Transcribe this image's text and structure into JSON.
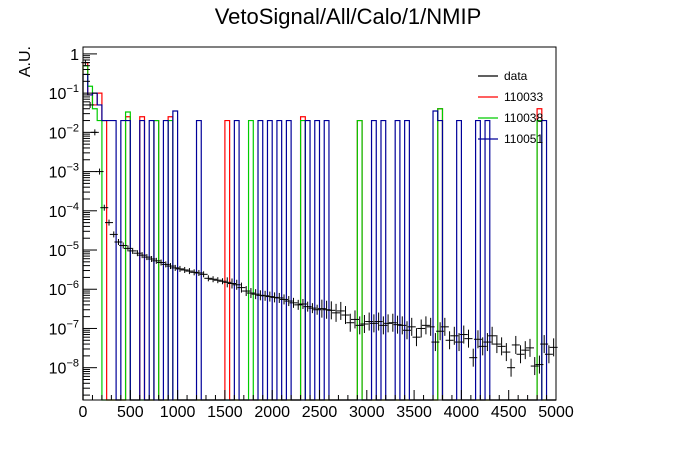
{
  "chart_data": {
    "type": "histogram",
    "title": "VetoSignal/All/Calo/1/NMIP",
    "xlabel": "",
    "ylabel": "A.U.",
    "xlim": [
      0,
      5000
    ],
    "ylim": [
      1.5e-09,
      1.5
    ],
    "yscale": "log",
    "bin_width": 50,
    "x_ticks": [
      0,
      500,
      1000,
      1500,
      2000,
      2500,
      3000,
      3500,
      4000,
      4500,
      5000
    ],
    "x_tick_labels": [
      "0",
      "500",
      "1000",
      "1500",
      "2000",
      "2500",
      "3000",
      "3500",
      "4000",
      "4500",
      "5000"
    ],
    "y_tick_labels": [
      {
        "value": 1,
        "base": "1",
        "exp": ""
      },
      {
        "value": 0.1,
        "base": "10",
        "exp": "−1"
      },
      {
        "value": 0.01,
        "base": "10",
        "exp": "−2"
      },
      {
        "value": 0.001,
        "base": "10",
        "exp": "−3"
      },
      {
        "value": 0.0001,
        "base": "10",
        "exp": "−4"
      },
      {
        "value": 1e-05,
        "base": "10",
        "exp": "−5"
      },
      {
        "value": 1e-06,
        "base": "10",
        "exp": "−6"
      },
      {
        "value": 1e-07,
        "base": "10",
        "exp": "−7"
      },
      {
        "value": 1e-08,
        "base": "10",
        "exp": "−8"
      }
    ],
    "legend_position": "top-right",
    "series": [
      {
        "name": "data",
        "color": "#000000",
        "style": "points",
        "points": [
          [
            25,
            0.6
          ],
          [
            75,
            0.05
          ],
          [
            125,
            0.01
          ],
          [
            175,
            0.001
          ],
          [
            225,
            0.00012
          ],
          [
            275,
            5e-05
          ],
          [
            325,
            2.5e-05
          ],
          [
            375,
            1.6e-05
          ],
          [
            425,
            1.3e-05
          ],
          [
            475,
            1.1e-05
          ],
          [
            525,
            9.5e-06
          ],
          [
            575,
            8.3e-06
          ],
          [
            625,
            7.4e-06
          ],
          [
            675,
            6.6e-06
          ],
          [
            725,
            5.9e-06
          ],
          [
            775,
            5.3e-06
          ],
          [
            825,
            4.8e-06
          ],
          [
            875,
            4.3e-06
          ],
          [
            925,
            3.9e-06
          ],
          [
            975,
            3.5e-06
          ],
          [
            1025,
            3.3e-06
          ],
          [
            1075,
            3.1e-06
          ],
          [
            1125,
            2.9e-06
          ],
          [
            1175,
            2.7e-06
          ],
          [
            1225,
            2.6e-06
          ],
          [
            1275,
            2.4e-06
          ],
          [
            1325,
            1.9e-06
          ],
          [
            1375,
            1.8e-06
          ],
          [
            1425,
            1.7e-06
          ],
          [
            1475,
            1.6e-06
          ],
          [
            1525,
            1.5e-06
          ],
          [
            1575,
            1.4e-06
          ],
          [
            1625,
            1.3e-06
          ],
          [
            1675,
            1.1e-06
          ],
          [
            1725,
            9e-07
          ],
          [
            1775,
            8e-07
          ],
          [
            1825,
            7.5e-07
          ],
          [
            1875,
            7e-07
          ],
          [
            1925,
            6.8e-07
          ],
          [
            1975,
            6.5e-07
          ],
          [
            2025,
            6.2e-07
          ],
          [
            2075,
            6e-07
          ],
          [
            2125,
            5.5e-07
          ],
          [
            2175,
            5e-07
          ],
          [
            2225,
            4.5e-07
          ],
          [
            2275,
            4e-07
          ],
          [
            2325,
            4.2e-07
          ],
          [
            2375,
            3.6e-07
          ],
          [
            2425,
            3.3e-07
          ],
          [
            2475,
            3e-07
          ],
          [
            2525,
            3.2e-07
          ],
          [
            2575,
            3e-07
          ],
          [
            2625,
            2.9e-07
          ],
          [
            2675,
            2.5e-07
          ],
          [
            2725,
            2.8e-07
          ],
          [
            2775,
            2.2e-07
          ],
          [
            2825,
            1.4e-07
          ],
          [
            2875,
            1.7e-07
          ],
          [
            2925,
            1.2e-07
          ],
          [
            2975,
            1.3e-07
          ],
          [
            3025,
            1.5e-07
          ],
          [
            3075,
            1.35e-07
          ],
          [
            3125,
            1.5e-07
          ],
          [
            3175,
            1.2e-07
          ],
          [
            3225,
            1.35e-07
          ],
          [
            3275,
            1.4e-07
          ],
          [
            3325,
            1.25e-07
          ],
          [
            3375,
            1.2e-07
          ],
          [
            3425,
            9e-08
          ],
          [
            3475,
            1.1e-07
          ],
          [
            3525,
            6e-08
          ],
          [
            3575,
            1e-07
          ],
          [
            3625,
            1.2e-07
          ],
          [
            3675,
            1.1e-07
          ],
          [
            3725,
            4.5e-08
          ],
          [
            3775,
            8.5e-08
          ],
          [
            3825,
            1.1e-07
          ],
          [
            3875,
            5e-08
          ],
          [
            3925,
            6.5e-08
          ],
          [
            3975,
            4.5e-08
          ],
          [
            4025,
            7e-08
          ],
          [
            4075,
            5.5e-08
          ],
          [
            4125,
            1.8e-08
          ],
          [
            4175,
            5.3e-08
          ],
          [
            4225,
            3.5e-08
          ],
          [
            4275,
            4.5e-08
          ],
          [
            4325,
            6.5e-08
          ],
          [
            4375,
            4e-08
          ],
          [
            4425,
            3.5e-08
          ],
          [
            4475,
            2.5e-08
          ],
          [
            4525,
            1e-08
          ],
          [
            4575,
            3.8e-08
          ],
          [
            4625,
            2.2e-08
          ],
          [
            4675,
            2.8e-08
          ],
          [
            4725,
            3.2e-08
          ],
          [
            4775,
            1.1e-08
          ],
          [
            4825,
            1.2e-08
          ],
          [
            4875,
            4e-08
          ],
          [
            4925,
            2.2e-08
          ],
          [
            4975,
            3.3e-08
          ]
        ]
      },
      {
        "name": "110033",
        "color": "#ff0000",
        "style": "step",
        "bins": [
          [
            0,
            0.6
          ],
          [
            50,
            0.09
          ],
          [
            100,
            0.05
          ],
          [
            150,
            0.1
          ],
          [
            200,
            0.02
          ],
          [
            450,
            0.025
          ],
          [
            600,
            0.025
          ],
          [
            750,
            0.02
          ],
          [
            900,
            0.025
          ],
          [
            1500,
            0.02
          ],
          [
            2300,
            0.025
          ],
          [
            2900,
            0.02
          ],
          [
            3750,
            0.04
          ],
          [
            4800,
            0.04
          ]
        ]
      },
      {
        "name": "110038",
        "color": "#00cc00",
        "style": "step",
        "bins": [
          [
            0,
            0.5
          ],
          [
            50,
            0.15
          ],
          [
            100,
            0.04
          ],
          [
            150,
            0.02
          ],
          [
            450,
            0.033
          ],
          [
            750,
            0.02
          ],
          [
            900,
            0.02
          ],
          [
            1750,
            0.02
          ],
          [
            2300,
            0.02
          ],
          [
            2900,
            0.02
          ],
          [
            3750,
            0.04
          ],
          [
            4800,
            0.02
          ]
        ]
      },
      {
        "name": "110051",
        "color": "#000099",
        "style": "step",
        "bins": [
          [
            0,
            0.3
          ],
          [
            50,
            0.09
          ],
          [
            100,
            0.1
          ],
          [
            150,
            0.05
          ],
          [
            200,
            0.02
          ],
          [
            250,
            0.02
          ],
          [
            300,
            0.02
          ],
          [
            400,
            0.02
          ],
          [
            450,
            0.02
          ],
          [
            600,
            0.02
          ],
          [
            700,
            0.02
          ],
          [
            850,
            0.02
          ],
          [
            950,
            0.035
          ],
          [
            1200,
            0.02
          ],
          [
            1600,
            0.02
          ],
          [
            1850,
            0.02
          ],
          [
            1950,
            0.02
          ],
          [
            2050,
            0.02
          ],
          [
            2150,
            0.02
          ],
          [
            2350,
            0.02
          ],
          [
            2450,
            0.02
          ],
          [
            2550,
            0.02
          ],
          [
            3050,
            0.02
          ],
          [
            3150,
            0.02
          ],
          [
            3300,
            0.02
          ],
          [
            3400,
            0.02
          ],
          [
            3700,
            0.035
          ],
          [
            3750,
            0.02
          ],
          [
            3950,
            0.02
          ],
          [
            4150,
            0.02
          ],
          [
            4250,
            0.02
          ],
          [
            4850,
            0.02
          ]
        ]
      }
    ]
  }
}
